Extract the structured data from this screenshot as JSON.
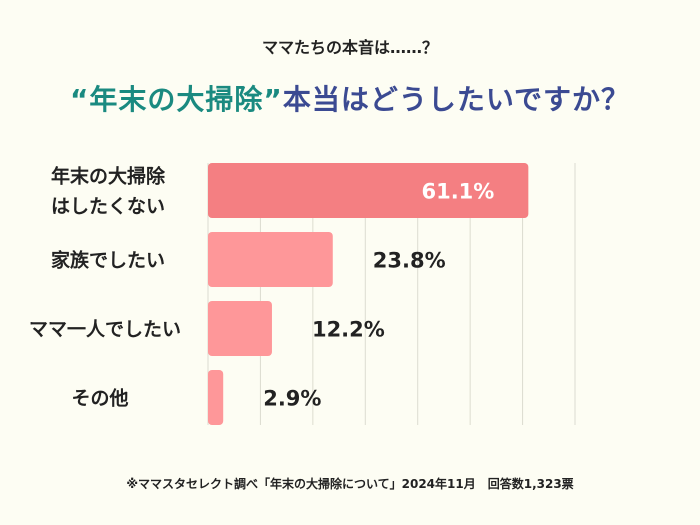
{
  "header": {
    "subtitle": "ママたちの本音は……？",
    "title_part1": "“年末の大掃除”",
    "title_part2": "本当はどうしたいですか？"
  },
  "chart_data": {
    "type": "bar",
    "orientation": "horizontal",
    "categories": [
      [
        "年末の大掃除",
        "はしたくない"
      ],
      [
        "家族でしたい"
      ],
      [
        "ママ一人でしたい"
      ],
      [
        "その他"
      ]
    ],
    "values": [
      61.1,
      23.8,
      12.2,
      2.9
    ],
    "labels": [
      "61.1%",
      "23.8%",
      "12.2%",
      "2.9%"
    ],
    "xlim": [
      0,
      70
    ],
    "grid": true,
    "grid_step": 10,
    "colors": [
      "#f47f82",
      "#fe9799",
      "#fe9799",
      "#fe9799"
    ]
  },
  "footer": {
    "note": "※ママスタセレクト調べ「年末の大掃除について」2024年11月　回答数1,323票"
  }
}
